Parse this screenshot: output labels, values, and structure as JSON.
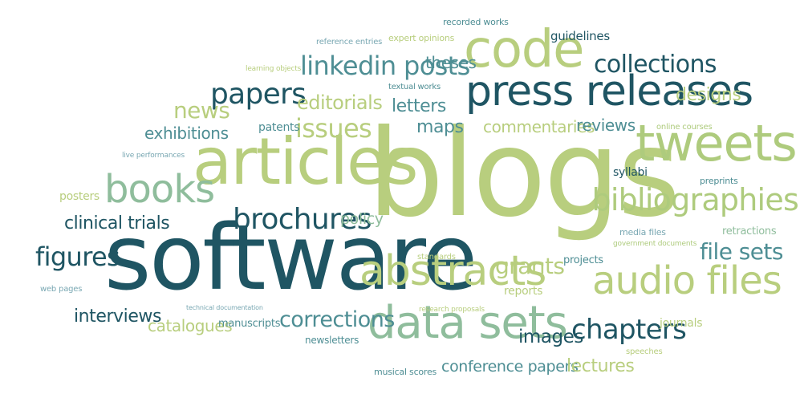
{
  "word_cloud": {
    "words": [
      {
        "key": "blogs",
        "text": "blogs",
        "color": "#b8ce7e"
      },
      {
        "key": "software",
        "text": "software",
        "color": "#1f5563"
      },
      {
        "key": "articles",
        "text": "articles",
        "color": "#b8ce7e"
      },
      {
        "key": "tweets",
        "text": "tweets",
        "color": "#aecb7d"
      },
      {
        "key": "press_releases",
        "text": "press releases",
        "color": "#1f5563"
      },
      {
        "key": "code",
        "text": "code",
        "color": "#b8ce7e"
      },
      {
        "key": "data_sets",
        "text": "data sets",
        "color": "#8fbd9c"
      },
      {
        "key": "abstracts",
        "text": "abstracts",
        "color": "#b8ce7e"
      },
      {
        "key": "audio_files",
        "text": "audio files",
        "color": "#b8ce7e"
      },
      {
        "key": "books",
        "text": "books",
        "color": "#8fbd9c"
      },
      {
        "key": "bibliographies",
        "text": "bibliographies",
        "color": "#aecb7d"
      },
      {
        "key": "brochures",
        "text": "brochures",
        "color": "#1f5563"
      },
      {
        "key": "papers",
        "text": "papers",
        "color": "#1f5563"
      },
      {
        "key": "linkedin_posts",
        "text": "linkedin posts",
        "color": "#4e8e94"
      },
      {
        "key": "collections",
        "text": "collections",
        "color": "#1f5563"
      },
      {
        "key": "chapters",
        "text": "chapters",
        "color": "#1f5563"
      },
      {
        "key": "figures",
        "text": "figures",
        "color": "#1f5563"
      },
      {
        "key": "issues",
        "text": "issues",
        "color": "#b8ce7e"
      },
      {
        "key": "editorials",
        "text": "editorials",
        "color": "#b8ce7e"
      },
      {
        "key": "news",
        "text": "news",
        "color": "#b8ce7e"
      },
      {
        "key": "corrections",
        "text": "corrections",
        "color": "#4e8e94"
      },
      {
        "key": "grants",
        "text": "grants",
        "color": "#b8ce7e"
      },
      {
        "key": "file_sets",
        "text": "file sets",
        "color": "#4e8e94"
      },
      {
        "key": "clinical_trials",
        "text": "clinical trials",
        "color": "#1f5563"
      },
      {
        "key": "interviews",
        "text": "interviews",
        "color": "#1f5563"
      },
      {
        "key": "exhibitions",
        "text": "exhibitions",
        "color": "#4e8e94"
      },
      {
        "key": "designs",
        "text": "designs",
        "color": "#b8ce7e"
      },
      {
        "key": "images",
        "text": "images",
        "color": "#1f5563"
      },
      {
        "key": "commentaries",
        "text": "commentaries",
        "color": "#b8ce7e"
      },
      {
        "key": "reviews",
        "text": "reviews",
        "color": "#4e8e94"
      },
      {
        "key": "maps",
        "text": "maps",
        "color": "#4e8e94"
      },
      {
        "key": "letters",
        "text": "letters",
        "color": "#4e8e94"
      },
      {
        "key": "theses",
        "text": "theses",
        "color": "#4e8e94"
      },
      {
        "key": "catalogues",
        "text": "catalogues",
        "color": "#b8ce7e"
      },
      {
        "key": "conference_papers",
        "text": "conference papers",
        "color": "#4e8e94"
      },
      {
        "key": "lectures",
        "text": "lectures",
        "color": "#b8ce7e"
      },
      {
        "key": "policy",
        "text": "policy",
        "color": "#8fbd9c"
      },
      {
        "key": "guidelines",
        "text": "guidelines",
        "color": "#1f5563"
      },
      {
        "key": "patents",
        "text": "patents",
        "color": "#4e8e94"
      },
      {
        "key": "posters",
        "text": "posters",
        "color": "#b8ce7e"
      },
      {
        "key": "syllabi",
        "text": "syllabi",
        "color": "#1f5563"
      },
      {
        "key": "reports",
        "text": "reports",
        "color": "#b8ce7e"
      },
      {
        "key": "journals",
        "text": "journals",
        "color": "#b8ce7e"
      },
      {
        "key": "projects",
        "text": "projects",
        "color": "#4e8e94"
      },
      {
        "key": "manuscripts",
        "text": "manuscripts",
        "color": "#4e8e94"
      },
      {
        "key": "retractions",
        "text": "retractions",
        "color": "#8fbd9c"
      },
      {
        "key": "newsletters",
        "text": "newsletters",
        "color": "#4e8e94"
      },
      {
        "key": "media_files",
        "text": "media files",
        "color": "#7aa8b3"
      },
      {
        "key": "preprints",
        "text": "preprints",
        "color": "#4e8e94"
      },
      {
        "key": "expert_opinions",
        "text": "expert opinions",
        "color": "#b8ce7e"
      },
      {
        "key": "recorded_works",
        "text": "recorded works",
        "color": "#4e8e94"
      },
      {
        "key": "reference_entries",
        "text": "reference entries",
        "color": "#7aa8b3"
      },
      {
        "key": "textual_works",
        "text": "textual works",
        "color": "#4e8e94"
      },
      {
        "key": "learning_objects",
        "text": "learning objects",
        "color": "#b8ce7e"
      },
      {
        "key": "online_courses",
        "text": "online courses",
        "color": "#aecb7d"
      },
      {
        "key": "live_performances",
        "text": "live performances",
        "color": "#7aa8b3"
      },
      {
        "key": "government_documents",
        "text": "government documents",
        "color": "#aecb7d"
      },
      {
        "key": "standards",
        "text": "standards",
        "color": "#b8ce7e"
      },
      {
        "key": "web_pages",
        "text": "web pages",
        "color": "#7aa8b3"
      },
      {
        "key": "technical_documentation",
        "text": "technical documentation",
        "color": "#7aa8b3"
      },
      {
        "key": "research_proposals",
        "text": "research proposals",
        "color": "#b8ce7e"
      },
      {
        "key": "speeches",
        "text": "speeches",
        "color": "#b8ce7e"
      },
      {
        "key": "musical_scores",
        "text": "musical scores",
        "color": "#4e8e94"
      }
    ]
  }
}
